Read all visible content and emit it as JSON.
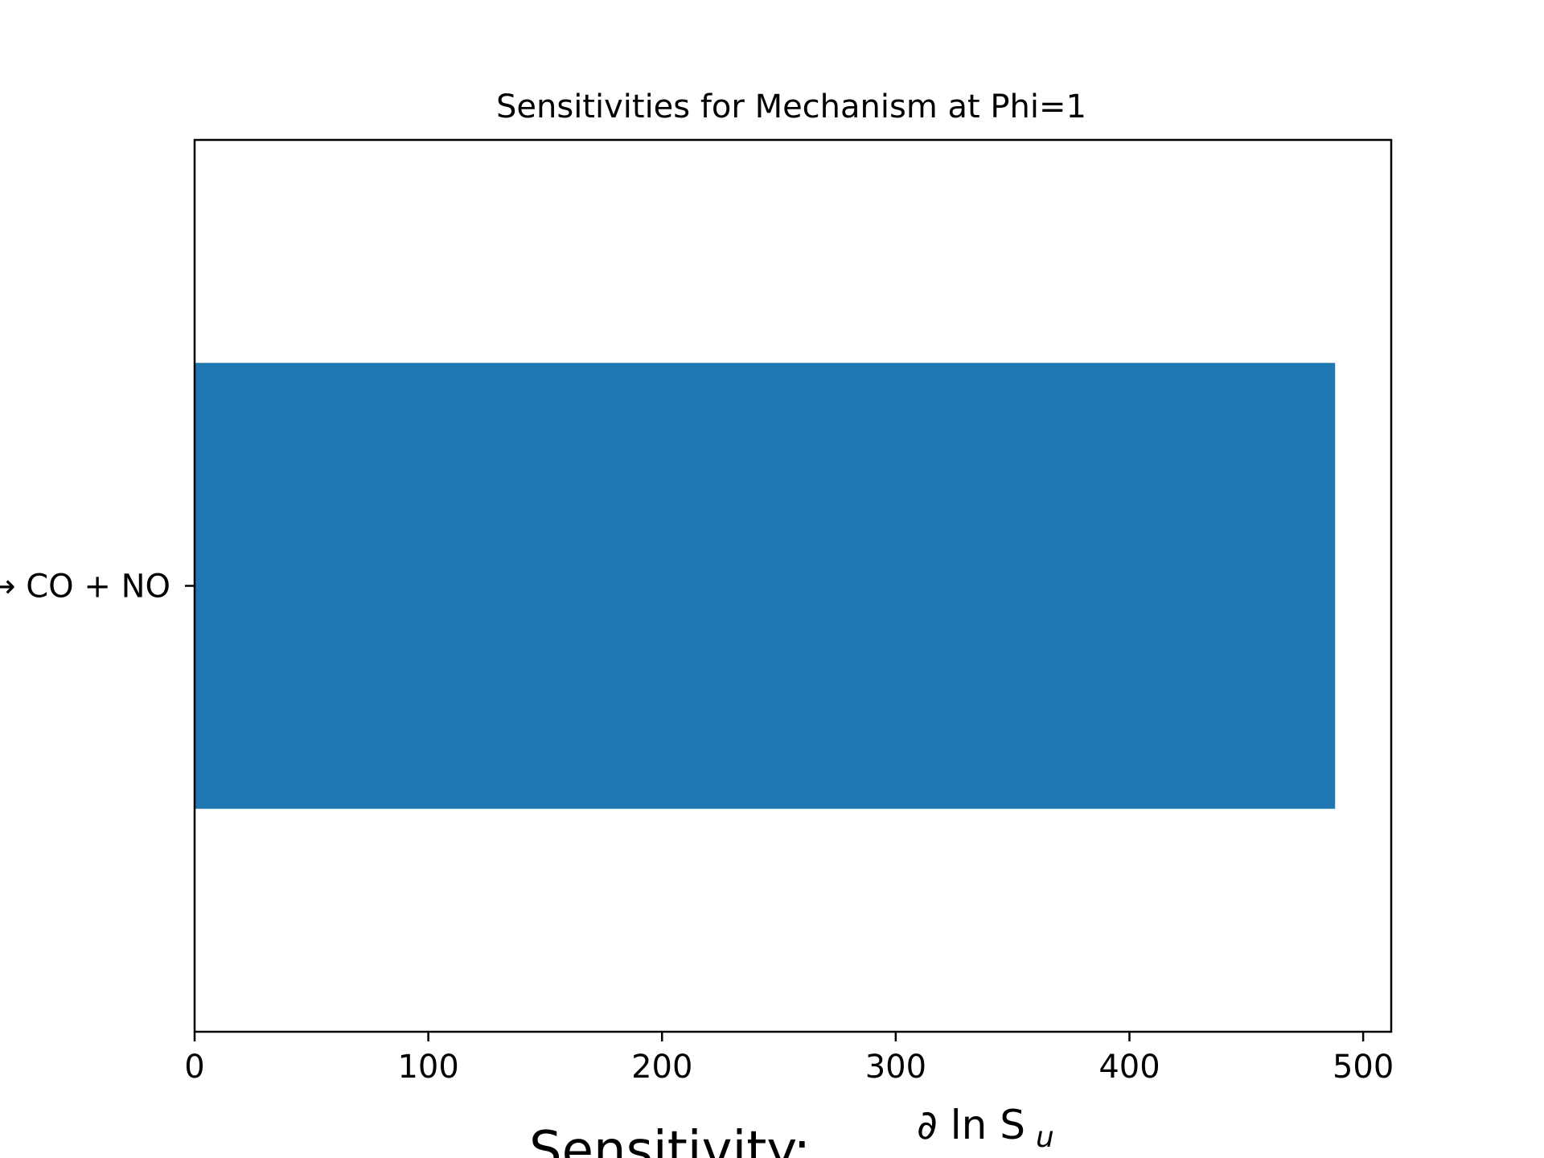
{
  "chart_data": {
    "type": "bar",
    "orientation": "horizontal",
    "title": "Sensitivities for Mechanism at Phi=1",
    "categories": [
      "→ CO + NO"
    ],
    "values": [
      488
    ],
    "xlim": [
      0,
      512
    ],
    "xticks": [
      0,
      100,
      200,
      300,
      400,
      500
    ],
    "xlabel": {
      "prefix": "Sensitivity:",
      "numerator": "∂ ln S",
      "numerator_sub": "u"
    },
    "ylabel": "",
    "grid": false,
    "bar_color": "#1f77b4"
  }
}
